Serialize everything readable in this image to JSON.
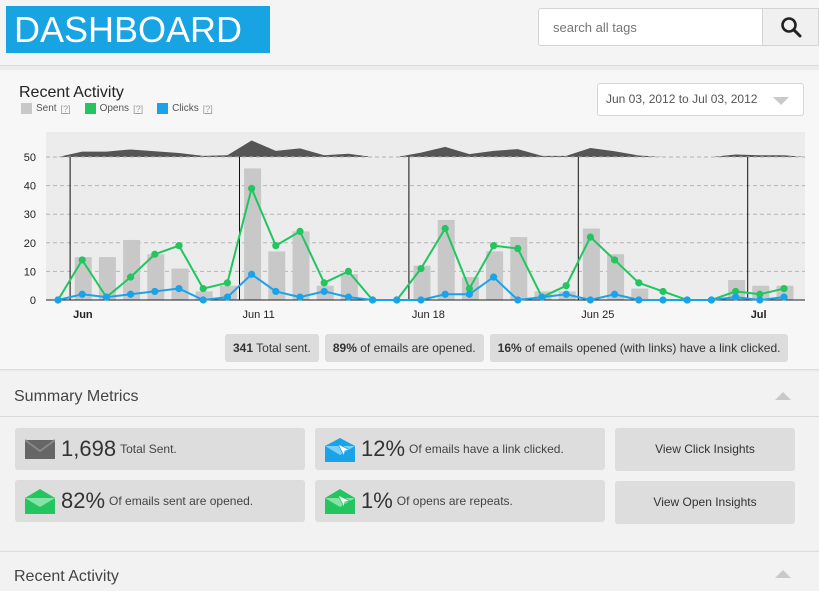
{
  "header": {
    "logo": "DASHBOARD",
    "search_placeholder": "search all tags"
  },
  "recent_activity": {
    "title": "Recent Activity",
    "legend": [
      {
        "label": "Sent",
        "help": "[?]",
        "color": "#c8c8c8"
      },
      {
        "label": "Opens",
        "help": "[?]",
        "color": "#22c55e"
      },
      {
        "label": "Clicks",
        "help": "[?]",
        "color": "#1aa3e8"
      }
    ],
    "date_range": "Jun 03, 2012 to Jul 03, 2012",
    "stats": [
      {
        "value": "341",
        "text": " Total sent."
      },
      {
        "value": "89%",
        "text": " of emails are opened."
      },
      {
        "value": "16%",
        "text": " of emails opened (with links) have a link clicked."
      }
    ]
  },
  "chart_data": {
    "type": "bar",
    "title": "",
    "xlabel": "",
    "ylabel": "",
    "ylim": [
      0,
      50
    ],
    "yticks": [
      0,
      10,
      20,
      30,
      40,
      50
    ],
    "x_tick_labels": [
      {
        "label": "Jun",
        "day": 1,
        "bold": true
      },
      {
        "label": "Jun 11",
        "day": 8,
        "bold": false
      },
      {
        "label": "Jun 18",
        "day": 15,
        "bold": false
      },
      {
        "label": "Jun 25",
        "day": 22,
        "bold": false
      },
      {
        "label": "Jul",
        "day": 29,
        "bold": true
      }
    ],
    "grid": true,
    "series": [
      {
        "name": "Sent",
        "type": "bar",
        "color": "#c8c8c8",
        "values": [
          0,
          15,
          15,
          21,
          16,
          11,
          3,
          5,
          46,
          17,
          24,
          5,
          9,
          0,
          0,
          12,
          28,
          8,
          17,
          22,
          3,
          3,
          25,
          16,
          4,
          0,
          0,
          0,
          7,
          5,
          5
        ]
      },
      {
        "name": "Opens",
        "type": "line",
        "color": "#22c55e",
        "values": [
          0,
          14,
          1,
          8,
          16,
          19,
          4,
          6,
          39,
          19,
          24,
          6,
          10,
          0,
          0,
          11,
          25,
          4,
          19,
          18,
          1,
          5,
          22,
          14,
          6,
          3,
          0,
          0,
          3,
          2,
          4
        ]
      },
      {
        "name": "Clicks",
        "type": "line",
        "color": "#1aa3e8",
        "values": [
          0,
          2,
          1,
          2,
          3,
          4,
          0,
          1,
          9,
          3,
          1,
          3,
          1,
          0,
          0,
          0,
          2,
          2,
          8,
          0,
          1,
          2,
          0,
          2,
          0,
          0,
          0,
          0,
          1,
          0,
          1
        ]
      }
    ]
  },
  "summary": {
    "title": "Summary Metrics",
    "cards": [
      {
        "value": "1,698",
        "text": "Total Sent.",
        "icon": "envelope-icon"
      },
      {
        "value": "12%",
        "text": "Of emails have a link clicked.",
        "icon": "click-envelope-icon"
      },
      {
        "value": "82%",
        "text": "Of emails sent are opened.",
        "icon": "open-envelope-icon"
      },
      {
        "value": "1%",
        "text": "Of opens are repeats.",
        "icon": "repeat-open-envelope-icon"
      }
    ],
    "buttons": {
      "click_insights": "View Click Insights",
      "open_insights": "View Open Insights"
    }
  },
  "recent_activity_section": {
    "title": "Recent Activity"
  },
  "colors": {
    "brand": "#18a3e3",
    "sent": "#c8c8c8",
    "opens": "#22c55e",
    "clicks": "#1aa3e8"
  }
}
